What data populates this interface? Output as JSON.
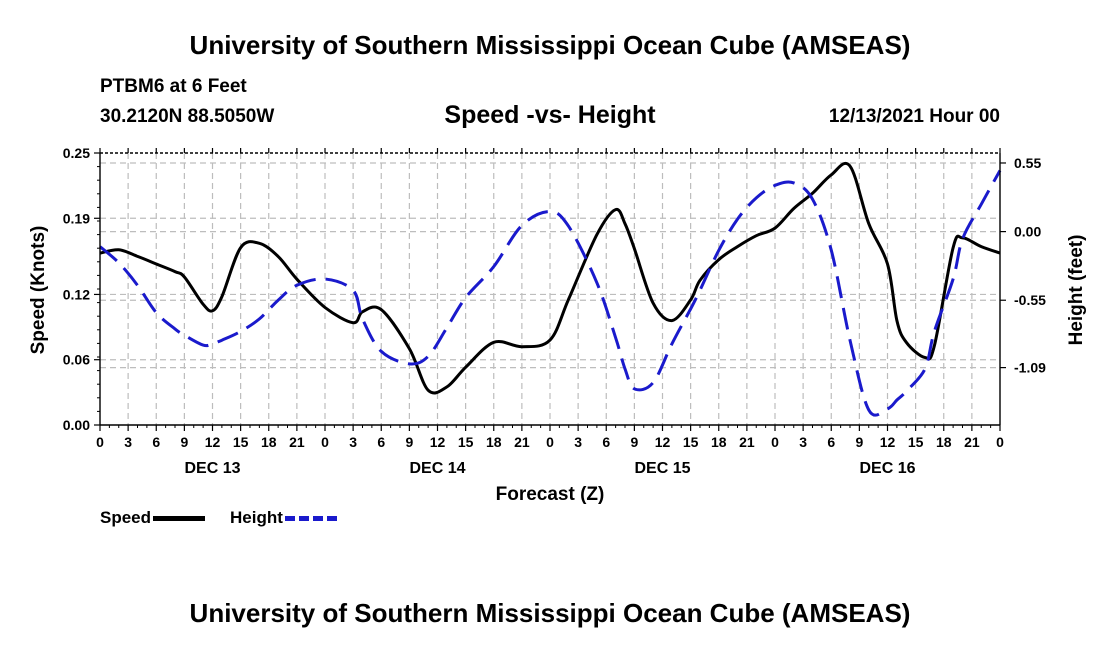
{
  "header": {
    "title": "University of Southern Mississippi Ocean Cube (AMSEAS)",
    "station": "PTBM6 at 6 Feet",
    "latlon": "30.2120N  88.5050W",
    "chart_title": "Speed -vs- Height",
    "date": "12/13/2021 Hour 00"
  },
  "footer": {
    "title": "University of Southern Mississippi Ocean Cube (AMSEAS)"
  },
  "legend": {
    "speed_label": "Speed",
    "height_label": "Height"
  },
  "colors": {
    "speed": "#000000",
    "height": "#1a1acc",
    "grid": "#bdbdbd"
  },
  "chart_data": {
    "type": "line",
    "title": "Speed -vs- Height",
    "xlabel": "Forecast (Z)",
    "ylabel": "Speed (Knots)",
    "y2label": "Height (feet)",
    "x_unit": "hours since 12/13/2021 00Z",
    "xlim": [
      0,
      96
    ],
    "x_tick_labels": [
      "0",
      "3",
      "6",
      "9",
      "12",
      "15",
      "18",
      "21",
      "0",
      "3",
      "6",
      "9",
      "12",
      "15",
      "18",
      "21",
      "0",
      "3",
      "6",
      "9",
      "12",
      "15",
      "18",
      "21",
      "0",
      "3",
      "6",
      "9",
      "12",
      "15",
      "18",
      "21",
      "0"
    ],
    "day_labels": [
      {
        "label": "DEC 13",
        "x": 12
      },
      {
        "label": "DEC 14",
        "x": 36
      },
      {
        "label": "DEC 15",
        "x": 60
      },
      {
        "label": "DEC 16",
        "x": 84
      }
    ],
    "ylim": [
      0,
      0.25
    ],
    "y_ticks": [
      0.0,
      0.06,
      0.12,
      0.19,
      0.25
    ],
    "y_tick_labels": [
      "0.00",
      "0.06",
      "0.12",
      "0.19",
      "0.25"
    ],
    "y2_ticks": [
      0.55,
      0.0,
      -0.55,
      -1.09
    ],
    "y2_tick_labels": [
      "0.55",
      "0.00",
      "-0.55",
      "-1.09"
    ],
    "y2lim": [
      -1.55,
      0.63
    ],
    "series": [
      {
        "name": "Speed",
        "axis": "left",
        "style": "solid",
        "x": [
          0,
          2,
          4,
          6,
          8,
          9,
          11,
          12,
          13,
          15,
          17,
          19,
          21,
          24,
          27,
          28,
          30,
          33,
          35,
          37,
          39,
          42,
          45,
          48,
          50,
          53,
          55,
          56,
          57,
          59,
          61,
          63,
          64,
          66,
          68,
          70,
          72,
          74,
          76,
          78,
          80,
          82,
          84,
          85,
          86,
          88,
          89,
          91,
          92,
          94,
          96
        ],
        "values": [
          0.158,
          0.161,
          0.155,
          0.148,
          0.141,
          0.136,
          0.111,
          0.105,
          0.118,
          0.163,
          0.167,
          0.155,
          0.134,
          0.108,
          0.094,
          0.104,
          0.106,
          0.07,
          0.032,
          0.035,
          0.053,
          0.076,
          0.072,
          0.078,
          0.116,
          0.175,
          0.198,
          0.185,
          0.162,
          0.112,
          0.096,
          0.115,
          0.133,
          0.152,
          0.164,
          0.174,
          0.181,
          0.199,
          0.213,
          0.23,
          0.238,
          0.185,
          0.148,
          0.096,
          0.076,
          0.062,
          0.073,
          0.163,
          0.172,
          0.164,
          0.158
        ]
      },
      {
        "name": "Height",
        "axis": "right",
        "style": "dashed",
        "x": [
          0,
          2,
          4,
          6,
          8,
          9,
          11,
          12,
          13,
          15,
          17,
          19,
          21,
          24,
          27,
          28,
          30,
          33,
          35,
          37,
          39,
          42,
          45,
          48,
          50,
          53,
          55,
          56,
          57,
          59,
          61,
          63,
          64,
          66,
          68,
          70,
          72,
          74,
          76,
          78,
          80,
          82,
          84,
          85,
          86,
          88,
          89,
          91,
          92,
          94,
          96
        ],
        "values": [
          -0.12,
          -0.25,
          -0.43,
          -0.65,
          -0.78,
          -0.83,
          -0.91,
          -0.9,
          -0.87,
          -0.8,
          -0.7,
          -0.55,
          -0.43,
          -0.38,
          -0.47,
          -0.7,
          -0.96,
          -1.06,
          -1.0,
          -0.77,
          -0.53,
          -0.28,
          0.05,
          0.16,
          0.04,
          -0.41,
          -0.85,
          -1.1,
          -1.26,
          -1.21,
          -0.9,
          -0.62,
          -0.47,
          -0.15,
          0.1,
          0.27,
          0.37,
          0.39,
          0.26,
          -0.15,
          -0.87,
          -1.43,
          -1.42,
          -1.35,
          -1.28,
          -1.1,
          -0.8,
          -0.38,
          -0.06,
          0.22,
          0.49
        ]
      }
    ]
  }
}
